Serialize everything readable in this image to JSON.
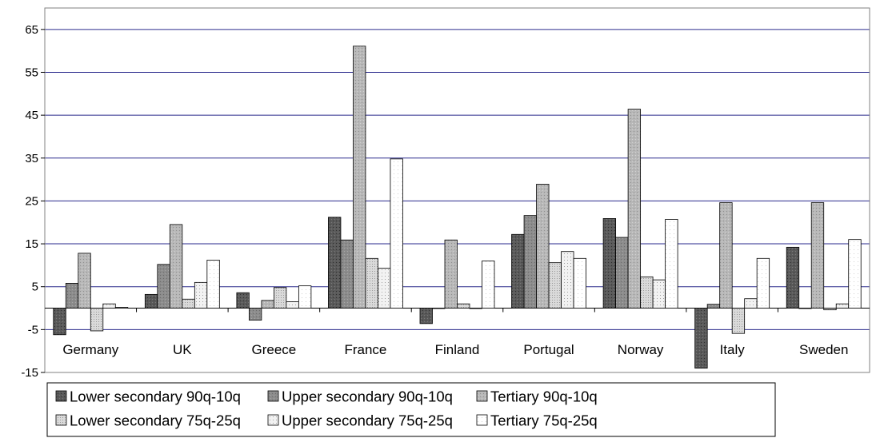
{
  "chart_data": {
    "type": "bar",
    "title": "",
    "xlabel": "",
    "ylabel": "",
    "ylim": [
      -15,
      70
    ],
    "yticks": [
      -15,
      -5,
      5,
      15,
      25,
      35,
      45,
      55,
      65
    ],
    "grid": true,
    "legend_position": "bottom",
    "categories": [
      "Germany",
      "UK",
      "Greece",
      "France",
      "Finland",
      "Portugal",
      "Norway",
      "Italy",
      "Sweden"
    ],
    "series": [
      {
        "name": "Lower secondary 90q-10q",
        "color": "#5a5a5a",
        "pattern": "dark-speckle",
        "values": [
          -6.2,
          3.2,
          3.6,
          21.2,
          -3.6,
          17.2,
          20.9,
          -14.0,
          14.2
        ]
      },
      {
        "name": "Upper secondary 90q-10q",
        "color": "#8c8c8c",
        "pattern": "mid-speckle",
        "values": [
          5.8,
          10.2,
          -2.8,
          15.9,
          0,
          21.6,
          16.5,
          0.9,
          0
        ]
      },
      {
        "name": "Tertiary 90q-10q",
        "color": "#b4b4b4",
        "pattern": "light-speckle",
        "values": [
          12.8,
          19.5,
          1.8,
          61.1,
          15.9,
          28.9,
          46.4,
          24.6,
          24.6
        ]
      },
      {
        "name": "Lower secondary 75q-25q",
        "color": "#cfcfcf",
        "pattern": "dense-dots",
        "values": [
          -5.3,
          2.1,
          4.8,
          11.6,
          1.0,
          10.6,
          7.3,
          -5.9,
          -0.4
        ]
      },
      {
        "name": "Upper secondary 75q-25q",
        "color": "#ededed",
        "pattern": "sparse-dots",
        "values": [
          1.0,
          6.0,
          1.5,
          9.3,
          0,
          13.2,
          6.6,
          2.2,
          1.0
        ]
      },
      {
        "name": "Tertiary 75q-25q",
        "color": "#fafafa",
        "pattern": "faint-dots",
        "values": [
          0.2,
          11.2,
          5.2,
          34.8,
          11.0,
          11.6,
          20.7,
          11.6,
          16.0
        ]
      }
    ]
  }
}
